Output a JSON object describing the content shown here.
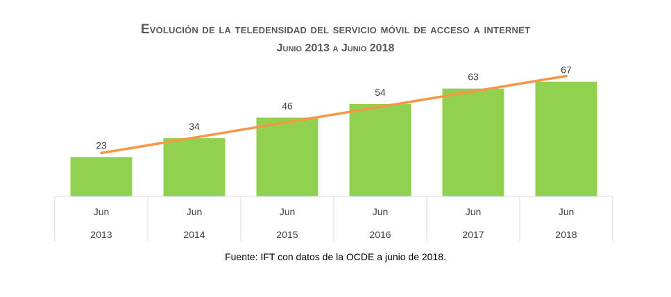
{
  "chart_data": {
    "type": "bar",
    "title": "Evolución de la teledensidad del servicio móvil de acceso a internet",
    "subtitle": "Junio 2013 a Junio 2018",
    "categories": [
      {
        "month": "Jun",
        "year": "2013"
      },
      {
        "month": "Jun",
        "year": "2014"
      },
      {
        "month": "Jun",
        "year": "2015"
      },
      {
        "month": "Jun",
        "year": "2016"
      },
      {
        "month": "Jun",
        "year": "2017"
      },
      {
        "month": "Jun",
        "year": "2018"
      }
    ],
    "series": [
      {
        "type": "bar",
        "values": [
          23,
          34,
          46,
          54,
          63,
          67
        ],
        "color": "#92D050"
      }
    ],
    "trendline": {
      "type": "linear",
      "color": "#F79646"
    },
    "ylim": [
      0,
      75
    ],
    "grid": false,
    "legend": "none",
    "source": "Fuente: IFT con datos de la OCDE a junio de 2018."
  },
  "colors": {
    "bar": "#92D050",
    "trend": "#F79646",
    "axis": "#D9D9D9"
  }
}
